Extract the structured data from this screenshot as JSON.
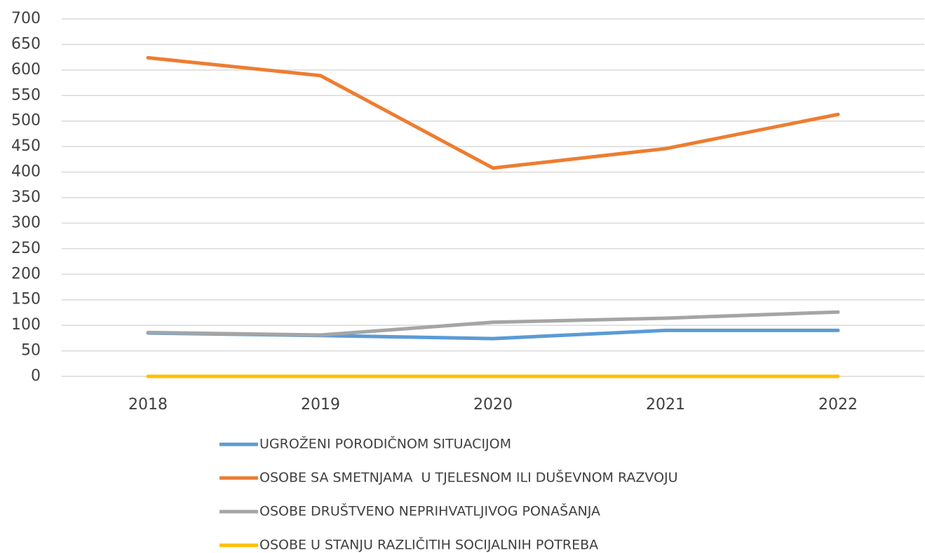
{
  "chart_data": {
    "type": "line",
    "categories": [
      "2018",
      "2019",
      "2020",
      "2021",
      "2022"
    ],
    "series": [
      {
        "name": "UGROŽENI PORODIČNOM SITUACIJOM",
        "color": "#5b9bd5",
        "values": [
          85,
          80,
          74,
          90,
          90
        ]
      },
      {
        "name": "OSOBE SA SMETNJAMA  U TJELESNOM ILI DUŠEVNOM RAZVOJU",
        "color": "#ed7d31",
        "values": [
          624,
          589,
          408,
          446,
          513
        ]
      },
      {
        "name": "OSOBE DRUŠTVENO NEPRIHVATLJIVOG PONAŠANJA",
        "color": "#a5a5a5",
        "values": [
          86,
          81,
          106,
          114,
          126
        ]
      },
      {
        "name": "OSOBE U STANJU RAZLIČITIH SOCIJALNIH POTREBA",
        "color": "#ffc000",
        "values": [
          0,
          0,
          0,
          0,
          0
        ]
      }
    ],
    "ylim": [
      0,
      700
    ],
    "yticks": [
      0,
      50,
      100,
      150,
      200,
      250,
      300,
      350,
      400,
      450,
      500,
      550,
      600,
      650,
      700
    ],
    "grid": true,
    "legend": "bottom"
  }
}
